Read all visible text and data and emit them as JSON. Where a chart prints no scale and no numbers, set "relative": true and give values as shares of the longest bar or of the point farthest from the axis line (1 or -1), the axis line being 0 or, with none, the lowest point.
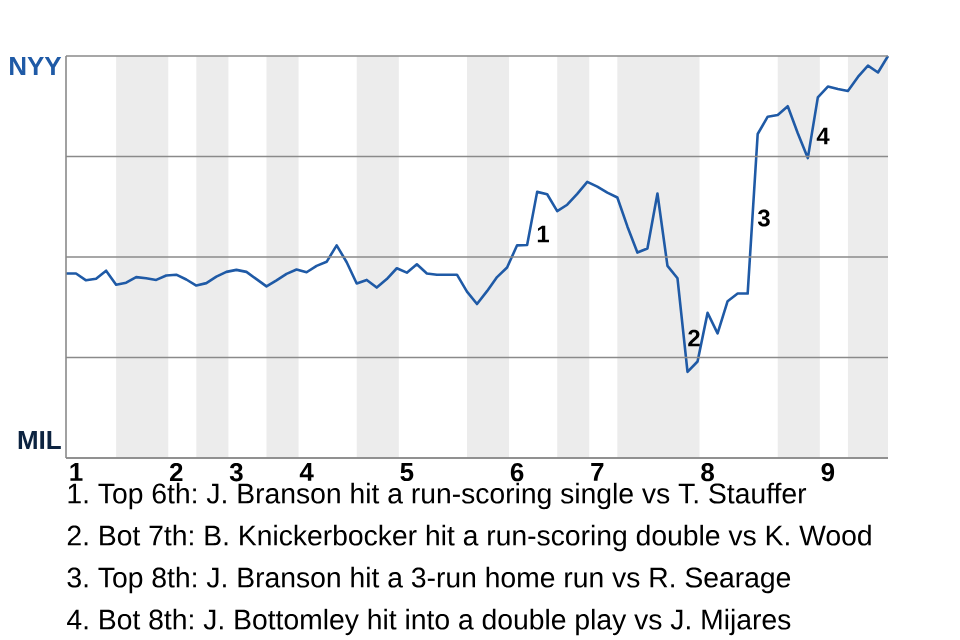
{
  "chart_data": {
    "type": "line",
    "relative": true,
    "categories": [
      null,
      "1",
      null,
      null,
      null,
      null,
      null,
      null,
      null,
      null,
      null,
      "2",
      null,
      null,
      null,
      null,
      null,
      "3",
      null,
      null,
      null,
      null,
      null,
      null,
      "4",
      null,
      null,
      null,
      null,
      null,
      null,
      null,
      null,
      null,
      "5",
      null,
      null,
      null,
      null,
      null,
      null,
      null,
      null,
      null,
      null,
      "6",
      null,
      null,
      null,
      null,
      null,
      null,
      null,
      "7",
      null,
      null,
      null,
      null,
      null,
      null,
      null,
      null,
      null,
      null,
      "8",
      null,
      null,
      null,
      null,
      null,
      null,
      null,
      null,
      null,
      null,
      null,
      "9",
      null,
      null,
      null,
      null,
      null,
      null
    ],
    "series": [
      {
        "color": "#1f5aa6",
        "values": [
          0.459,
          0.459,
          0.442,
          0.446,
          0.466,
          0.431,
          0.436,
          0.45,
          0.447,
          0.443,
          0.454,
          0.456,
          0.444,
          0.429,
          0.435,
          0.451,
          0.463,
          0.468,
          0.463,
          0.445,
          0.427,
          0.442,
          0.458,
          0.469,
          0.462,
          0.478,
          0.488,
          0.529,
          0.487,
          0.434,
          0.443,
          0.424,
          0.445,
          0.472,
          0.461,
          0.482,
          0.459,
          0.456,
          0.456,
          0.456,
          0.414,
          0.383,
          0.415,
          0.45,
          0.474,
          0.529,
          0.53,
          0.662,
          0.656,
          0.614,
          0.63,
          0.657,
          0.687,
          0.675,
          0.66,
          0.648,
          0.576,
          0.511,
          0.521,
          0.658,
          0.478,
          0.447,
          0.214,
          0.24,
          0.361,
          0.31,
          0.39,
          0.409,
          0.409,
          0.806,
          0.849,
          0.853,
          0.875,
          0.808,
          0.746,
          0.897,
          0.924,
          0.918,
          0.913,
          0.948,
          0.976,
          0.959,
          1.0
        ]
      }
    ],
    "grid": "y",
    "annotations": [
      "NYY",
      "MIL",
      "1",
      "2",
      "3",
      "4",
      "1. Top 6th: J. Branson hit a run-scoring single vs T. Stauffer",
      "2. Bot 7th: B. Knickerbocker hit a run-scoring double vs K. Wood",
      "3. Top 8th: J. Branson hit a 3-run home run vs R. Searage",
      "4. Bot 8th: J. Bottomley hit into a double play vs J. Mijares"
    ]
  }
}
